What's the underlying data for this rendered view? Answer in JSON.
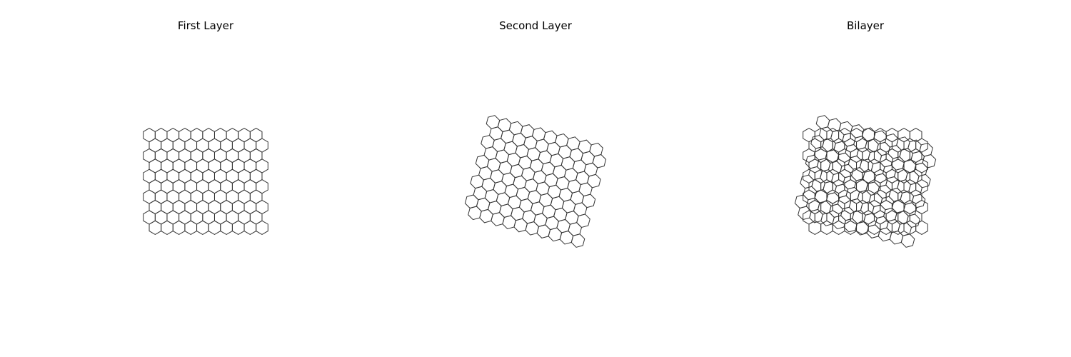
{
  "panels": [
    {
      "title": "First Layer",
      "layers": [
        {
          "rotation_deg": 0
        }
      ]
    },
    {
      "title": "Second Layer",
      "layers": [
        {
          "rotation_deg": 15
        }
      ]
    },
    {
      "title": "Bilayer",
      "layers": [
        {
          "rotation_deg": 0
        },
        {
          "rotation_deg": 15
        }
      ]
    }
  ],
  "lattice": {
    "type": "hexagonal",
    "columns": 10,
    "rows": 10
  },
  "colors": {
    "stroke": "#333333",
    "background": "#ffffff",
    "title": "#000000"
  }
}
